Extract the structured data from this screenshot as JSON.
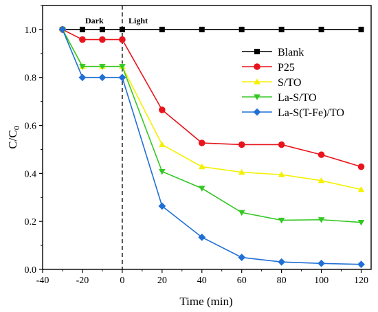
{
  "chart_data": {
    "type": "line",
    "xlabel": "Time (min)",
    "ylabel_main": "C/C",
    "ylabel_sub": "0",
    "xlim": [
      -40,
      125
    ],
    "ylim": [
      0.0,
      1.1
    ],
    "xticks": [
      -40,
      -20,
      0,
      20,
      40,
      60,
      80,
      100,
      120
    ],
    "yticks": [
      0.0,
      0.2,
      0.4,
      0.6,
      0.8,
      1.0
    ],
    "xtick_labels": [
      "-40",
      "-20",
      "0",
      "20",
      "40",
      "60",
      "80",
      "100",
      "120"
    ],
    "ytick_labels": [
      "0.0",
      "0.2",
      "0.4",
      "0.6",
      "0.8",
      "1.0"
    ],
    "grid": false,
    "legend_position": "upper-right",
    "annotations": {
      "divider_x": 0,
      "dark_label": "Dark",
      "light_label": "Light"
    },
    "series": [
      {
        "name": "Blank",
        "color": "#000000",
        "marker": "square",
        "x": [
          -30,
          -20,
          -10,
          0,
          20,
          40,
          60,
          80,
          100,
          120
        ],
        "y": [
          1.0,
          1.0,
          1.0,
          1.0,
          1.0,
          1.0,
          1.0,
          1.0,
          1.0,
          1.0
        ]
      },
      {
        "name": "P25",
        "color": "#e8141c",
        "marker": "circle",
        "x": [
          -30,
          -20,
          -10,
          0,
          20,
          40,
          60,
          80,
          100,
          120
        ],
        "y": [
          1.0,
          0.958,
          0.958,
          0.958,
          0.665,
          0.527,
          0.52,
          0.52,
          0.478,
          0.428
        ]
      },
      {
        "name": "S/TO",
        "color": "#f5f000",
        "marker": "triangle-up",
        "x": [
          -30,
          -20,
          -10,
          0,
          20,
          40,
          60,
          80,
          100,
          120
        ],
        "y": [
          1.0,
          0.846,
          0.846,
          0.846,
          0.52,
          0.428,
          0.405,
          0.395,
          0.37,
          0.333
        ]
      },
      {
        "name": "La-S/TO",
        "color": "#33c823",
        "marker": "triangle-down",
        "x": [
          -30,
          -20,
          -10,
          0,
          20,
          40,
          60,
          80,
          100,
          120
        ],
        "y": [
          1.0,
          0.846,
          0.846,
          0.846,
          0.408,
          0.338,
          0.237,
          0.205,
          0.207,
          0.196
        ]
      },
      {
        "name": "La-S(T-Fe)/TO",
        "color": "#1f6fd6",
        "marker": "diamond",
        "x": [
          -30,
          -20,
          -10,
          0,
          20,
          40,
          60,
          80,
          100,
          120
        ],
        "y": [
          1.0,
          0.8,
          0.8,
          0.8,
          0.264,
          0.134,
          0.05,
          0.031,
          0.025,
          0.021
        ]
      }
    ]
  }
}
